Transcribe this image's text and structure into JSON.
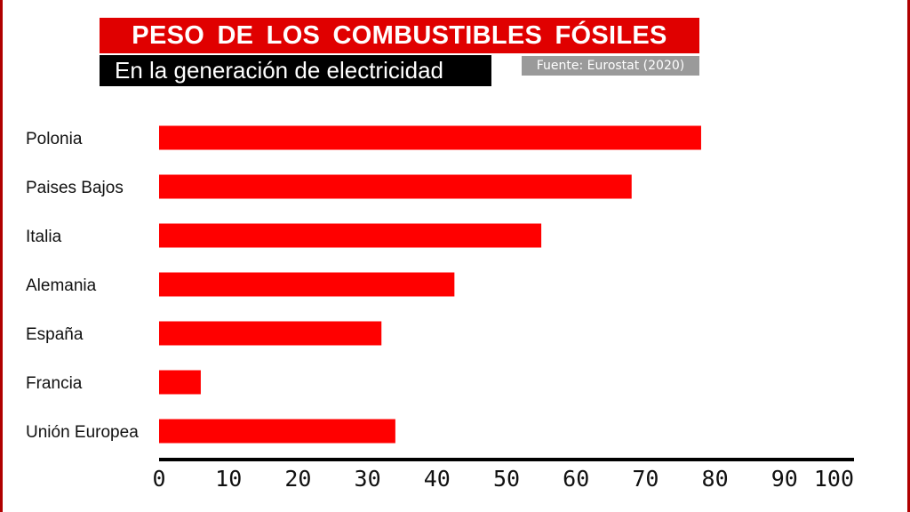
{
  "title": "PESO  DE  LOS  COMBUSTIBLES  FÓSILES",
  "subtitle": "En la generación de electricidad",
  "source": "Fuente: Eurostat (2020)",
  "colors": {
    "bar": "#ff0000",
    "title_bg": "#e00000",
    "subtitle_bg": "#000000",
    "source_bg": "#9a9a9a",
    "axis": "#000000"
  },
  "chart_data": {
    "type": "bar",
    "orientation": "horizontal",
    "title": "PESO DE LOS COMBUSTIBLES FÓSILES",
    "subtitle": "En la generación de electricidad",
    "categories": [
      "Polonia",
      "Paises Bajos",
      "Italia",
      "Alemania",
      "España",
      "Francia",
      "Unión Europea"
    ],
    "values": [
      78,
      68,
      55,
      42.5,
      32,
      6,
      34
    ],
    "xlim": [
      0,
      100
    ],
    "ticks": [
      0,
      10,
      20,
      30,
      40,
      50,
      60,
      70,
      80,
      90,
      100
    ],
    "tick_labels": [
      "0",
      "10",
      "20",
      "30",
      "40",
      "50",
      "60",
      "70",
      "80",
      "90",
      "100"
    ],
    "grid": false,
    "legend": "none"
  }
}
